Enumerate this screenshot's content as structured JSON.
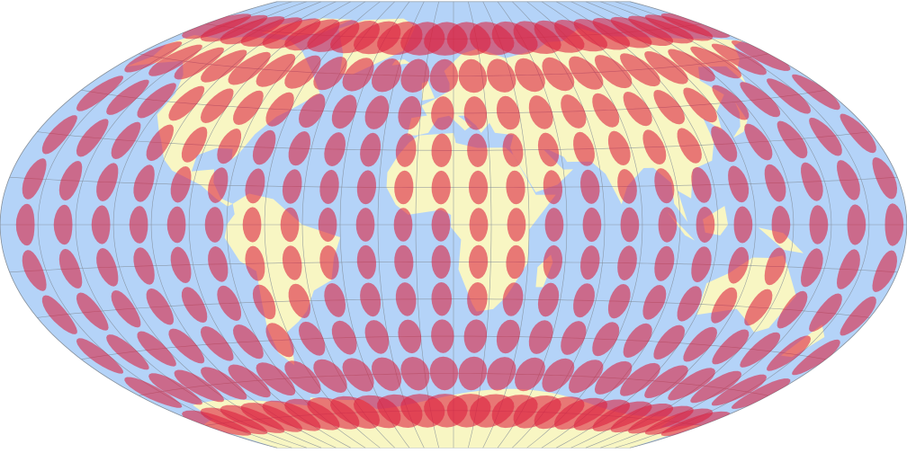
{
  "map": {
    "type": "world-map-tissot-indicatrix",
    "central_meridian": 10,
    "graticule_step_deg": 15,
    "indicatrix_step_deg": 15,
    "colors": {
      "background": "#ffffff",
      "ocean": "#b4d3f8",
      "land": "#f8f6c3",
      "graticule": "#7f8a95",
      "indicatrix": "#dc1e3c",
      "border": "#9aa6b2"
    }
  }
}
